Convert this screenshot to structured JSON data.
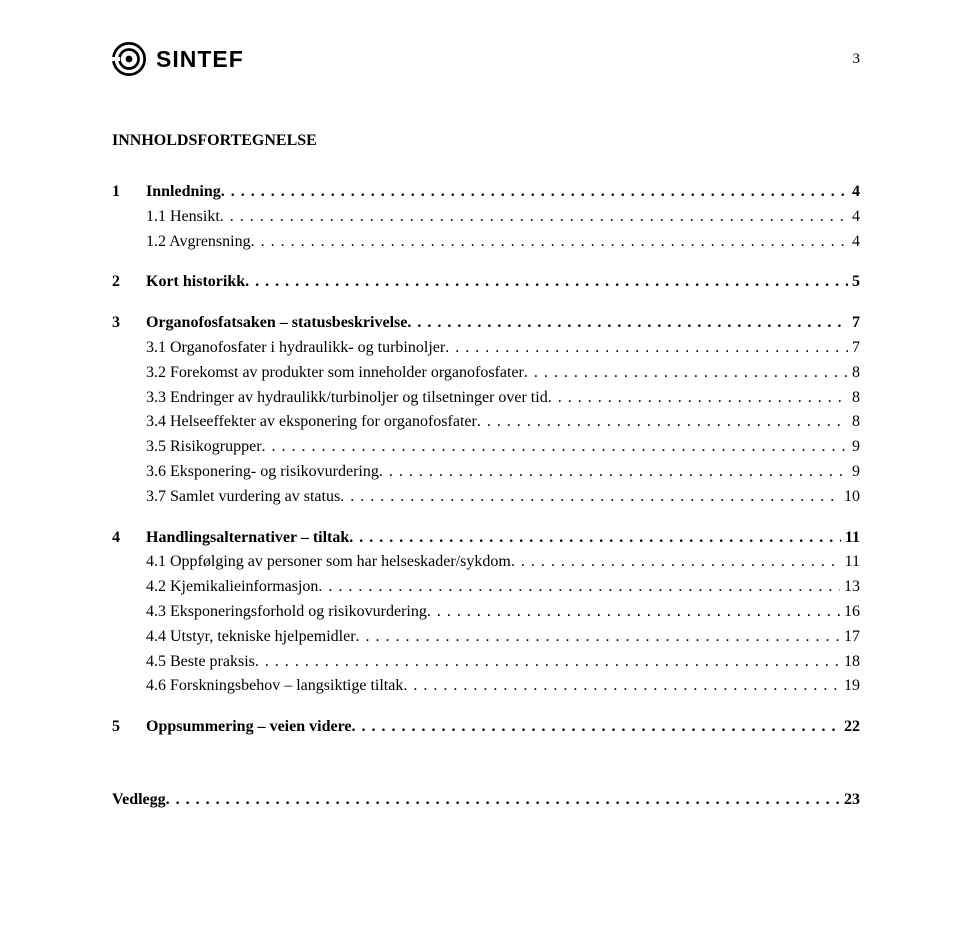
{
  "header": {
    "brand": "SINTEF",
    "page_number": "3"
  },
  "title": "INNHOLDSFORTEGNELSE",
  "title_fontsize": 16,
  "body_fontsize": 16,
  "logo_text_fontsize": 23,
  "colors": {
    "text": "#000000",
    "background": "#ffffff"
  },
  "sections": [
    {
      "num": "1",
      "label": "Innledning",
      "page": "4",
      "children": [
        {
          "num": "1.1",
          "label": "Hensikt",
          "page": "4"
        },
        {
          "num": "1.2",
          "label": "Avgrensning",
          "page": "4"
        }
      ]
    },
    {
      "num": "2",
      "label": "Kort historikk",
      "page": "5",
      "children": []
    },
    {
      "num": "3",
      "label": "Organofosfatsaken – statusbeskrivelse",
      "page": "7",
      "children": [
        {
          "num": "3.1",
          "label": "Organofosfater i hydraulikk- og turbinoljer",
          "page": "7"
        },
        {
          "num": "3.2",
          "label": "Forekomst av produkter som inneholder organofosfater",
          "page": "8"
        },
        {
          "num": "3.3",
          "label": "Endringer av hydraulikk/turbinoljer og tilsetninger over tid",
          "page": "8"
        },
        {
          "num": "3.4",
          "label": "Helseeffekter av eksponering for organofosfater",
          "page": "8"
        },
        {
          "num": "3.5",
          "label": "Risikogrupper",
          "page": "9"
        },
        {
          "num": "3.6",
          "label": "Eksponering- og risikovurdering",
          "page": "9"
        },
        {
          "num": "3.7",
          "label": "Samlet vurdering av status",
          "page": "10"
        }
      ]
    },
    {
      "num": "4",
      "label": "Handlingsalternativer – tiltak",
      "page": "11",
      "children": [
        {
          "num": "4.1",
          "label": "Oppfølging av personer som har helseskader/sykdom",
          "page": "11"
        },
        {
          "num": "4.2",
          "label": "Kjemikalieinformasjon",
          "page": "13"
        },
        {
          "num": "4.3",
          "label": "Eksponeringsforhold og risikovurdering",
          "page": "16"
        },
        {
          "num": "4.4",
          "label": "Utstyr, tekniske hjelpemidler",
          "page": "17"
        },
        {
          "num": "4.5",
          "label": "Beste praksis",
          "page": "18"
        },
        {
          "num": "4.6",
          "label": "Forskningsbehov – langsiktige tiltak",
          "page": "19"
        }
      ]
    },
    {
      "num": "5",
      "label": "Oppsummering – veien videre",
      "page": "22",
      "children": []
    }
  ],
  "appendix": {
    "label": "Vedlegg",
    "page": "23"
  }
}
